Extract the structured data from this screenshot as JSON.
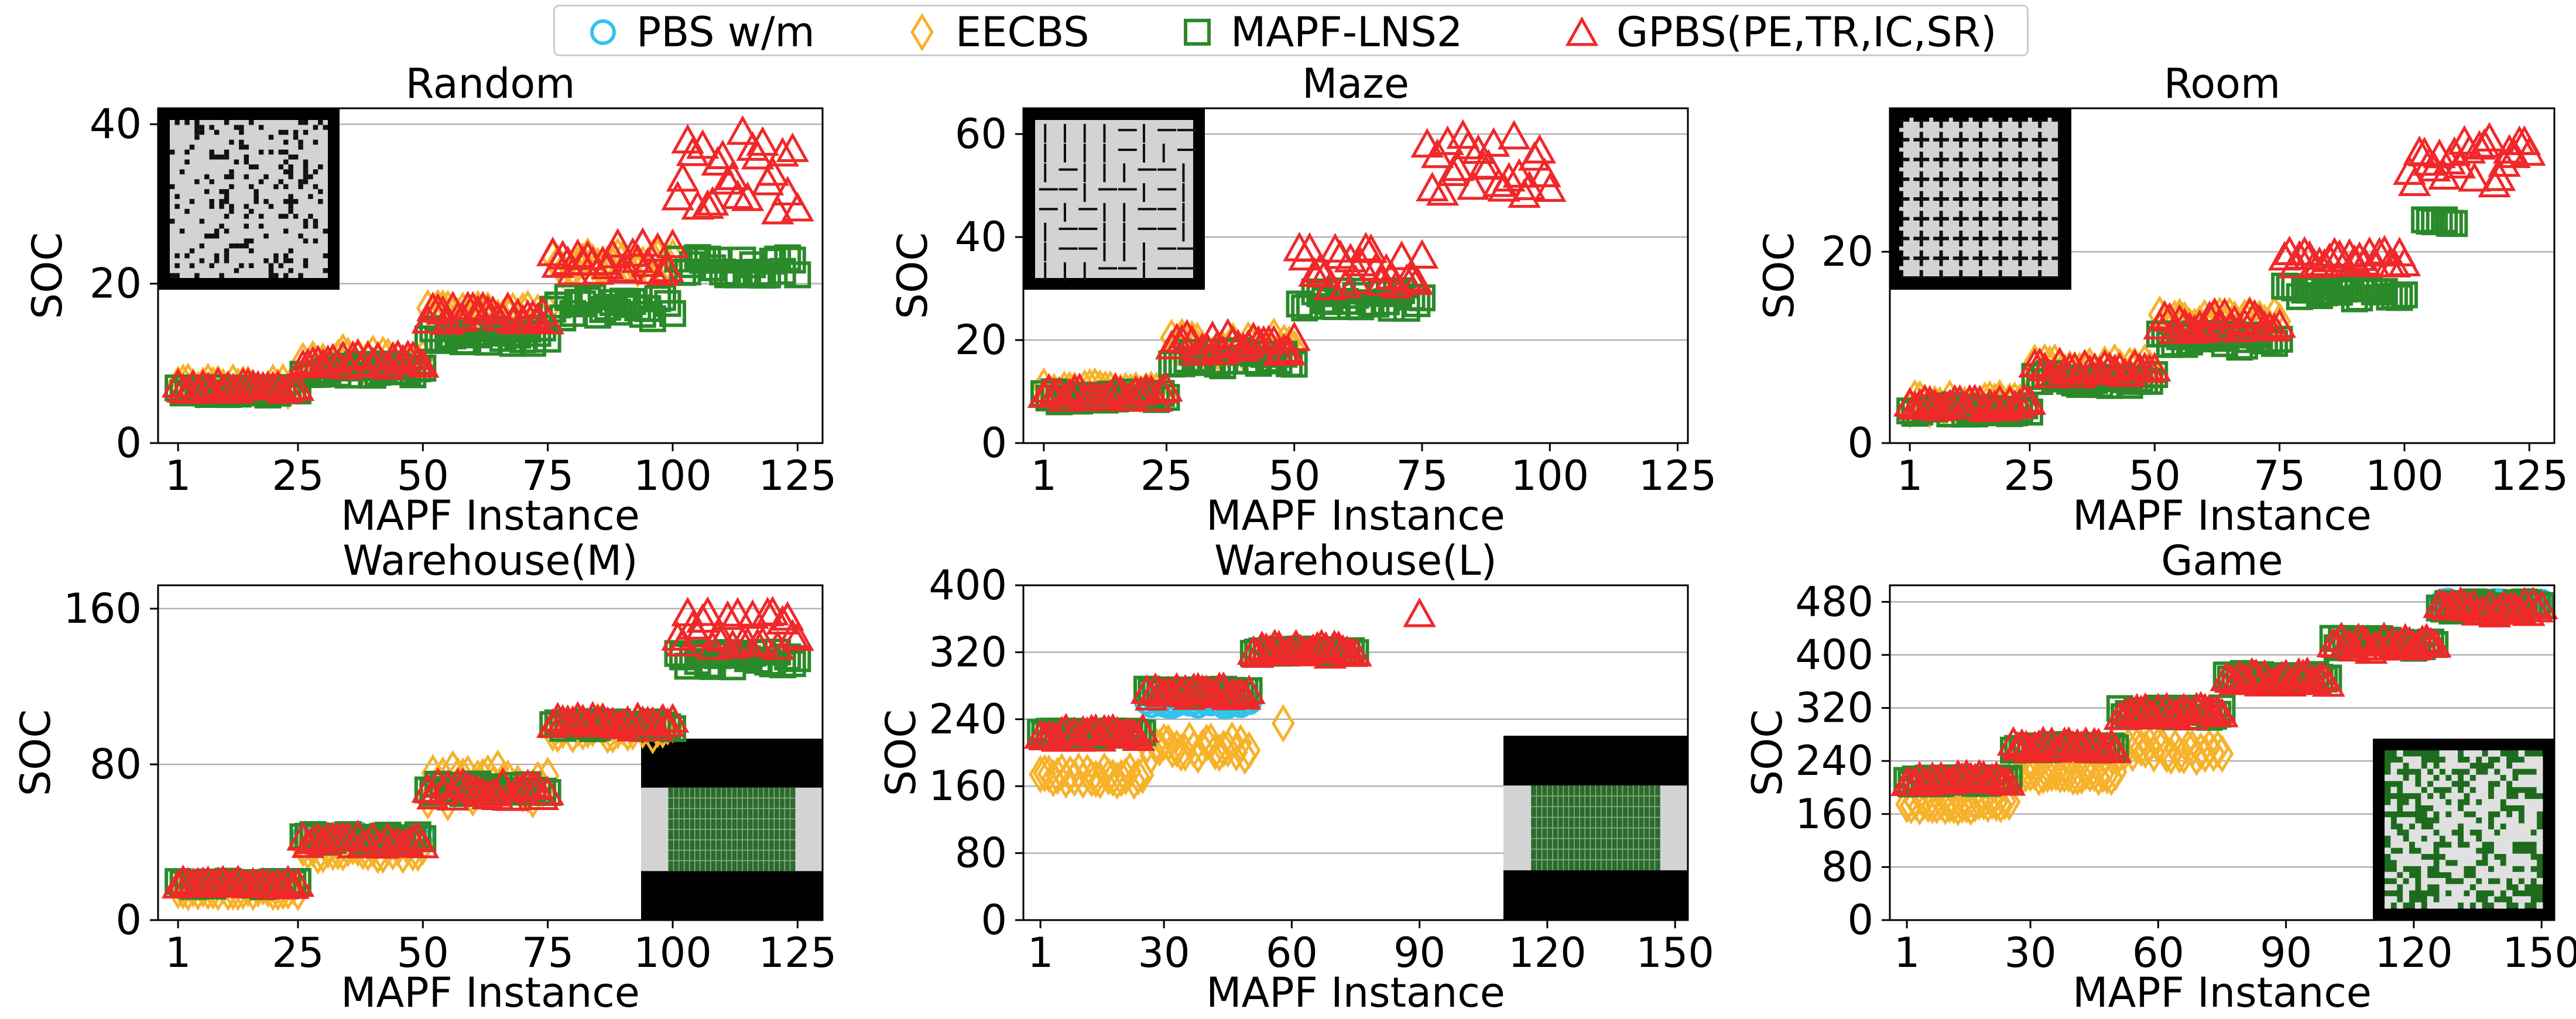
{
  "legend": [
    {
      "name": "PBS w/m",
      "marker": "circle",
      "color": "#2ec4ec"
    },
    {
      "name": "EECBS",
      "marker": "diamond",
      "color": "#f7b22a"
    },
    {
      "name": "MAPF-LNS2",
      "marker": "square",
      "color": "#2a8a2a"
    },
    {
      "name": "GPBS(PE,TR,IC,SR)",
      "marker": "triangle",
      "color": "#f0282a"
    }
  ],
  "colors": {
    "pbs": "#2ec4ec",
    "eecbs": "#f7b22a",
    "lns": "#2a8a2a",
    "gpbs": "#f0282a",
    "grid": "#b0b0b0"
  },
  "chart_data": [
    {
      "type": "scatter",
      "title": "Random",
      "xlabel": "MAPF Instance",
      "ylabel": "SOC",
      "xticks": [
        1,
        25,
        50,
        75,
        100,
        125
      ],
      "yticks": [
        0,
        20,
        40
      ],
      "xlim": [
        -3,
        130
      ],
      "ylim": [
        0,
        42
      ],
      "inset": {
        "kind": "random-grid-map",
        "position": "top-left"
      },
      "series": [
        {
          "name": "EECBS",
          "groups": [
            [
              1,
              25,
              6.5,
              7.8
            ],
            [
              26,
              50,
              9.5,
              11.5
            ],
            [
              51,
              75,
              15.5,
              17.0
            ],
            [
              76,
              100,
              21.5,
              23.5
            ]
          ]
        },
        {
          "name": "MAPF-LNS2",
          "groups": [
            [
              1,
              25,
              6.0,
              7.0
            ],
            [
              26,
              50,
              8.5,
              10.0
            ],
            [
              51,
              75,
              12.5,
              14.5
            ],
            [
              76,
              100,
              15.5,
              18.5
            ],
            [
              101,
              125,
              21.0,
              23.5
            ]
          ]
        },
        {
          "name": "GPBS(PE,TR,IC,SR)",
          "groups": [
            [
              1,
              25,
              6.5,
              7.5
            ],
            [
              26,
              50,
              9.5,
              11.0
            ],
            [
              51,
              75,
              15.0,
              17.0
            ],
            [
              76,
              100,
              21.0,
              25.0
            ],
            [
              101,
              125,
              29.0,
              39.0
            ]
          ]
        }
      ]
    },
    {
      "type": "scatter",
      "title": "Maze",
      "xlabel": "MAPF Instance",
      "ylabel": "SOC",
      "xticks": [
        1,
        25,
        50,
        75,
        100,
        125
      ],
      "yticks": [
        0,
        20,
        40,
        60
      ],
      "xlim": [
        -3,
        127
      ],
      "ylim": [
        0,
        65
      ],
      "inset": {
        "kind": "maze-map",
        "position": "top-left"
      },
      "series": [
        {
          "name": "EECBS",
          "groups": [
            [
              1,
              25,
              9,
              11
            ],
            [
              26,
              50,
              17,
              21
            ]
          ]
        },
        {
          "name": "MAPF-LNS2",
          "groups": [
            [
              1,
              25,
              8,
              10
            ],
            [
              26,
              50,
              15,
              18
            ],
            [
              51,
              75,
              26,
              30
            ]
          ]
        },
        {
          "name": "GPBS(PE,TR,IC,SR)",
          "groups": [
            [
              1,
              25,
              8.5,
              10.5
            ],
            [
              26,
              50,
              17,
              21
            ],
            [
              51,
              75,
              30,
              38
            ],
            [
              76,
              100,
              48,
              60
            ]
          ]
        }
      ]
    },
    {
      "type": "scatter",
      "title": "Room",
      "xlabel": "MAPF Instance",
      "ylabel": "SOC",
      "xticks": [
        1,
        25,
        50,
        75,
        100,
        125
      ],
      "yticks": [
        0,
        20
      ],
      "xlim": [
        -3,
        130
      ],
      "ylim": [
        0,
        35
      ],
      "inset": {
        "kind": "room-map",
        "position": "top-left"
      },
      "series": [
        {
          "name": "EECBS",
          "groups": [
            [
              1,
              25,
              3.5,
              4.8
            ],
            [
              26,
              50,
              7.0,
              8.5
            ],
            [
              51,
              75,
              12.0,
              13.5
            ]
          ]
        },
        {
          "name": "MAPF-LNS2",
          "groups": [
            [
              1,
              25,
              3.0,
              4.0
            ],
            [
              26,
              50,
              6.0,
              7.5
            ],
            [
              51,
              75,
              10.0,
              11.5
            ],
            [
              76,
              100,
              15.0,
              16.5
            ],
            [
              104,
              110,
              22.5,
              23.5
            ]
          ]
        },
        {
          "name": "GPBS(PE,TR,IC,SR)",
          "groups": [
            [
              1,
              25,
              3.5,
              4.5
            ],
            [
              26,
              50,
              7.0,
              8.5
            ],
            [
              51,
              75,
              11.5,
              13.5
            ],
            [
              76,
              100,
              18.5,
              20.0
            ],
            [
              101,
              125,
              27.0,
              32.0
            ]
          ]
        }
      ]
    },
    {
      "type": "scatter",
      "title": "Warehouse(M)",
      "xlabel": "MAPF Instance",
      "ylabel": "SOC",
      "xticks": [
        1,
        25,
        50,
        75,
        100,
        125
      ],
      "yticks": [
        0,
        80,
        160
      ],
      "xlim": [
        -3,
        130
      ],
      "ylim": [
        0,
        172
      ],
      "inset": {
        "kind": "warehouse-map",
        "position": "bottom-right"
      },
      "series": [
        {
          "name": "PBS w/m",
          "groups": [
            [
              26,
              50,
              40,
              45
            ]
          ]
        },
        {
          "name": "EECBS",
          "groups": [
            [
              1,
              25,
              14,
              18
            ],
            [
              26,
              50,
              33,
              38
            ],
            [
              51,
              75,
              60,
              78
            ],
            [
              76,
              100,
              95,
              102
            ]
          ]
        },
        {
          "name": "MAPF-LNS2",
          "groups": [
            [
              1,
              25,
              17,
              20
            ],
            [
              26,
              50,
              40,
              44
            ],
            [
              51,
              75,
              65,
              70
            ],
            [
              76,
              100,
              98,
              102
            ],
            [
              101,
              125,
              130,
              138
            ]
          ]
        },
        {
          "name": "GPBS(PE,TR,IC,SR)",
          "groups": [
            [
              1,
              25,
              17,
              20
            ],
            [
              26,
              50,
              38,
              43
            ],
            [
              51,
              75,
              62,
              70
            ],
            [
              76,
              100,
              98,
              104
            ],
            [
              101,
              125,
              140,
              158
            ]
          ]
        }
      ]
    },
    {
      "type": "scatter",
      "title": "Warehouse(L)",
      "xlabel": "MAPF Instance",
      "ylabel": "SOC",
      "xticks": [
        1,
        30,
        60,
        90,
        120,
        150
      ],
      "yticks": [
        0,
        80,
        160,
        240,
        320,
        400
      ],
      "xlim": [
        -3,
        153
      ],
      "ylim": [
        0,
        400
      ],
      "inset": {
        "kind": "warehouse-map",
        "position": "bottom-right"
      },
      "series": [
        {
          "name": "PBS w/m",
          "groups": [
            [
              26,
              50,
              255,
              262
            ]
          ]
        },
        {
          "name": "EECBS",
          "groups": [
            [
              1,
              25,
              165,
              178
            ],
            [
              26,
              50,
              195,
              215
            ],
            [
              58,
              58,
              235,
              235
            ]
          ]
        },
        {
          "name": "MAPF-LNS2",
          "groups": [
            [
              1,
              25,
              218,
              226
            ],
            [
              26,
              50,
              268,
              276
            ],
            [
              51,
              75,
              318,
              324
            ]
          ]
        },
        {
          "name": "GPBS(PE,TR,IC,SR)",
          "groups": [
            [
              1,
              25,
              215,
              228
            ],
            [
              26,
              50,
              265,
              278
            ],
            [
              51,
              75,
              315,
              328
            ],
            [
              90,
              90,
              365,
              365
            ]
          ]
        }
      ]
    },
    {
      "type": "scatter",
      "title": "Game",
      "xlabel": "MAPF Instance",
      "ylabel": "SOC",
      "xticks": [
        1,
        30,
        60,
        90,
        120,
        150
      ],
      "yticks": [
        0,
        80,
        160,
        240,
        320,
        400,
        480
      ],
      "xlim": [
        -3,
        153
      ],
      "ylim": [
        0,
        505
      ],
      "inset": {
        "kind": "game-map",
        "position": "bottom-right"
      },
      "series": [
        {
          "name": "PBS w/m",
          "groups": [
            [
              126,
              150,
              475,
              482
            ]
          ]
        },
        {
          "name": "EECBS",
          "groups": [
            [
              1,
              25,
              170,
              180
            ],
            [
              26,
              50,
              215,
              225
            ],
            [
              51,
              75,
              245,
              265
            ]
          ]
        },
        {
          "name": "MAPF-LNS2",
          "groups": [
            [
              1,
              25,
              205,
              215
            ],
            [
              26,
              50,
              255,
              265
            ],
            [
              51,
              75,
              305,
              320
            ],
            [
              76,
              100,
              360,
              372
            ],
            [
              101,
              125,
              410,
              425
            ],
            [
              126,
              150,
              465,
              480
            ]
          ]
        },
        {
          "name": "GPBS(PE,TR,IC,SR)",
          "groups": [
            [
              1,
              25,
              205,
              218
            ],
            [
              26,
              50,
              255,
              268
            ],
            [
              51,
              75,
              305,
              320
            ],
            [
              76,
              100,
              355,
              372
            ],
            [
              101,
              125,
              405,
              425
            ],
            [
              126,
              150,
              460,
              480
            ]
          ]
        }
      ]
    }
  ]
}
